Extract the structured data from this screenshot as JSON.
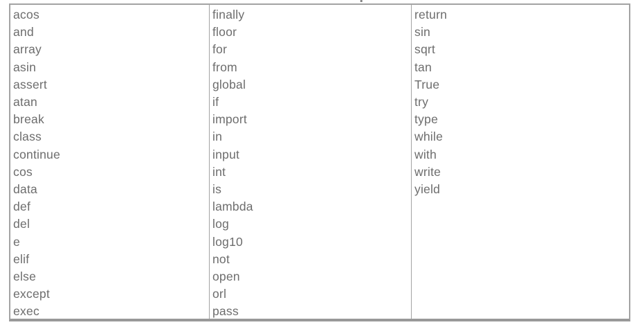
{
  "document": {
    "description": "Table of reserved words and function names, three columns, no header row",
    "artifact": "descender of cropped text line above table"
  },
  "table": {
    "columns": [
      {
        "name": "column-1",
        "items": [
          "acos",
          "and",
          "array",
          "asin",
          "assert",
          "atan",
          "break",
          "class",
          "continue",
          "cos",
          "data",
          "def",
          "del",
          "e",
          "elif",
          "else",
          "except",
          "exec"
        ]
      },
      {
        "name": "column-2",
        "items": [
          "finally",
          "floor",
          "for",
          "from",
          "global",
          "if",
          "import",
          "in",
          "input",
          "int",
          "is",
          "lambda",
          "log",
          "log10",
          "not",
          "open",
          "orl",
          "pass"
        ]
      },
      {
        "name": "column-3",
        "items": [
          "return",
          "sin",
          "sqrt",
          "tan",
          "True",
          "try",
          "type",
          "while",
          "with",
          "write",
          "yield"
        ]
      }
    ]
  },
  "colors": {
    "background": "#ffffff",
    "text": "#6d6d6d",
    "border": "#a3a3a3",
    "border_bottom": "#999999"
  }
}
